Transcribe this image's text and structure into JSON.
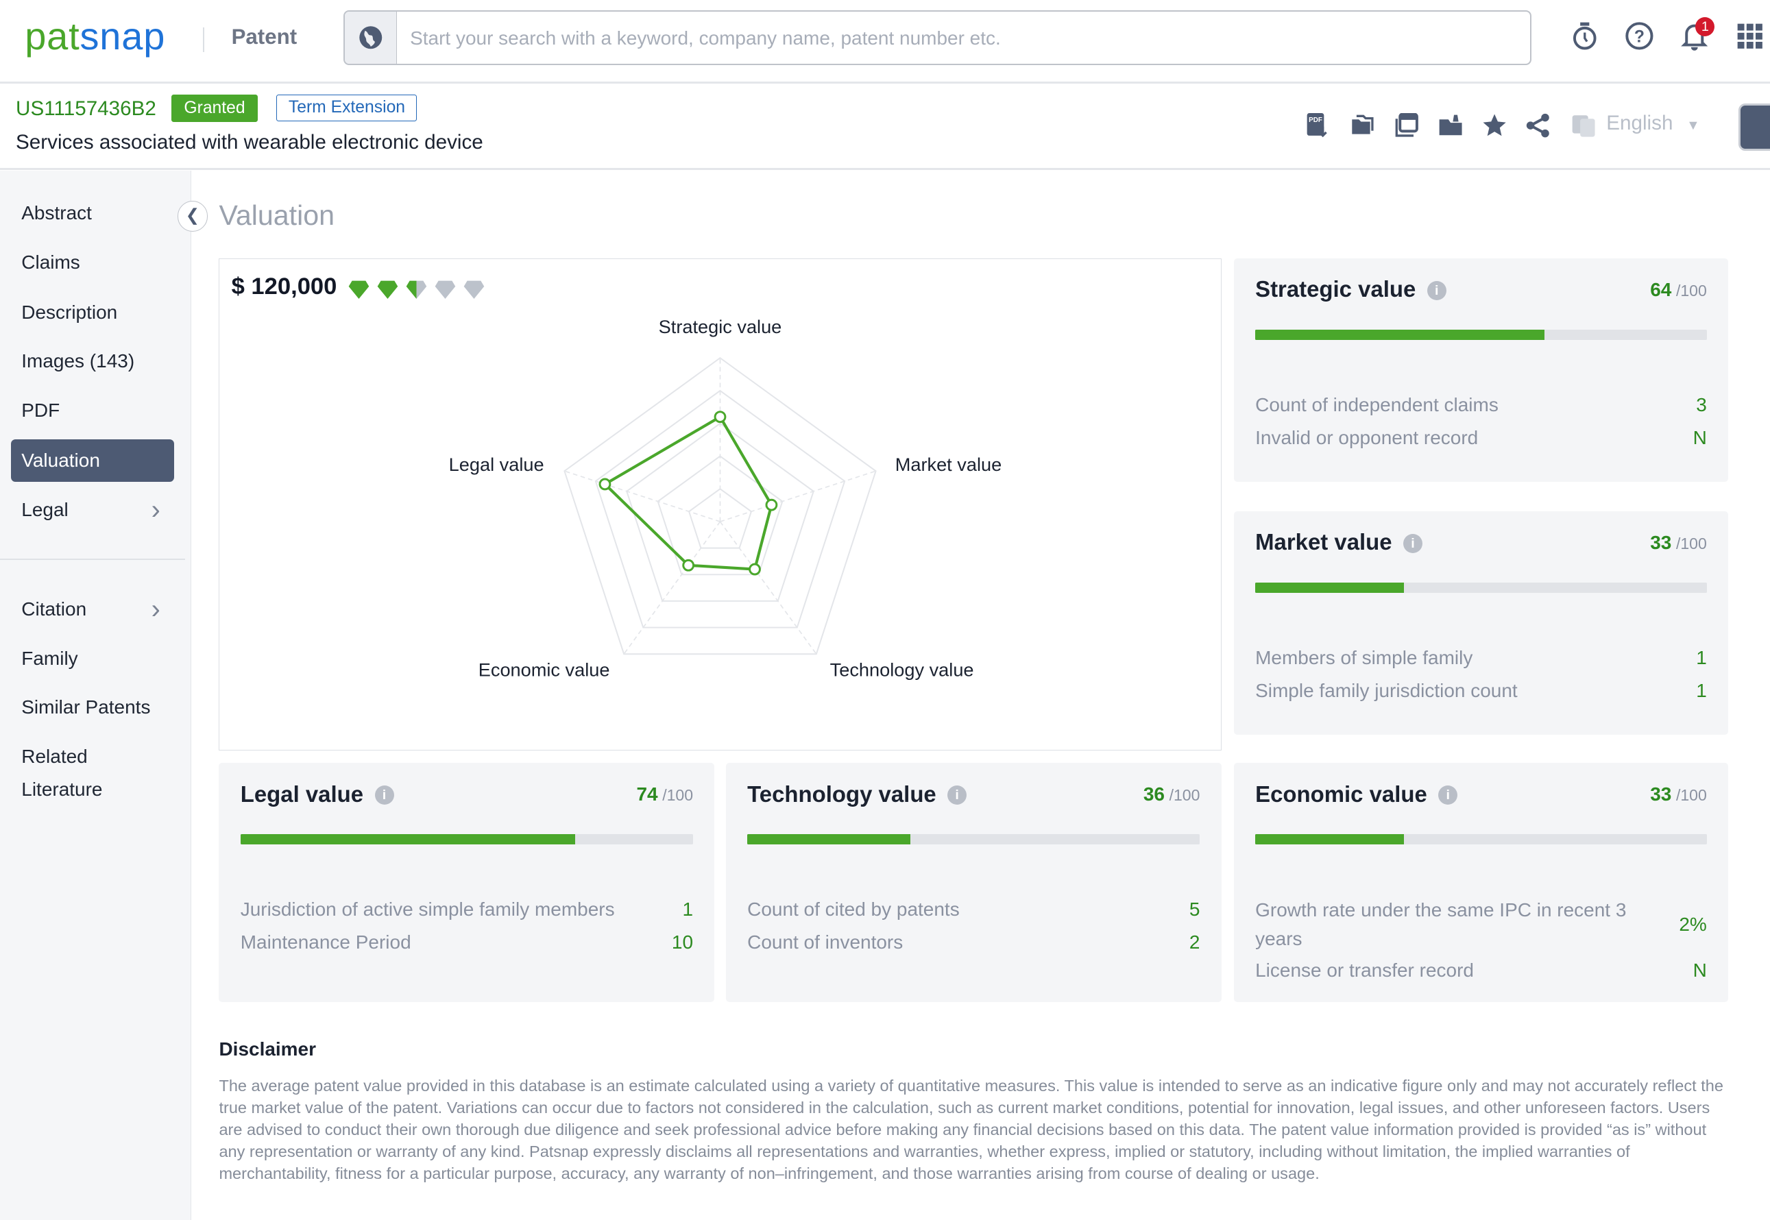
{
  "header": {
    "logo": "patsnap",
    "logo_a": "pat",
    "logo_b": "snap",
    "product": "Patent",
    "search_placeholder": "Start your search with a keyword, company name, patent number etc.",
    "notifications": "1"
  },
  "patent": {
    "number": "US11157436B2",
    "status": "Granted",
    "tag": "Term Extension",
    "title": "Services associated with wearable electronic device",
    "language": "English"
  },
  "sidebar": {
    "items": [
      {
        "label": "Abstract"
      },
      {
        "label": "Claims"
      },
      {
        "label": "Description"
      },
      {
        "label": "Images (143)"
      },
      {
        "label": "PDF"
      },
      {
        "label": "Valuation",
        "active": true
      },
      {
        "label": "Legal",
        "chevron": true
      },
      {
        "label": "Citation",
        "chevron": true
      },
      {
        "label": "Family"
      },
      {
        "label": "Similar Patents"
      },
      {
        "label": "Related Literature"
      }
    ]
  },
  "page_title": "Valuation",
  "valuation": {
    "price": "$ 120,000",
    "rating": 2.5,
    "rating_max": 5,
    "accent": "#4aa72b"
  },
  "chart_data": {
    "type": "radar",
    "axes": [
      "Strategic value",
      "Market value",
      "Technology value",
      "Economic value",
      "Legal value"
    ],
    "values": [
      64,
      33,
      36,
      33,
      74
    ],
    "range": [
      0,
      100
    ],
    "levels": 5
  },
  "cards": {
    "strategic": {
      "title": "Strategic value",
      "score": "64",
      "max": "/100",
      "pct": 64,
      "rows": [
        {
          "label": "Count of independent claims",
          "value": "3"
        },
        {
          "label": "Invalid or opponent record",
          "value": "N"
        }
      ]
    },
    "market": {
      "title": "Market value",
      "score": "33",
      "max": "/100",
      "pct": 33,
      "rows": [
        {
          "label": "Members of simple family",
          "value": "1"
        },
        {
          "label": "Simple family jurisdiction count",
          "value": "1"
        }
      ]
    },
    "legal": {
      "title": "Legal value",
      "score": "74",
      "max": "/100",
      "pct": 74,
      "rows": [
        {
          "label": "Jurisdiction of active simple family members",
          "value": "1"
        },
        {
          "label": "Maintenance Period",
          "value": "10"
        }
      ]
    },
    "technology": {
      "title": "Technology value",
      "score": "36",
      "max": "/100",
      "pct": 36,
      "rows": [
        {
          "label": "Count of cited by patents",
          "value": "5"
        },
        {
          "label": "Count of inventors",
          "value": "2"
        }
      ]
    },
    "economic": {
      "title": "Economic value",
      "score": "33",
      "max": "/100",
      "pct": 33,
      "rows": [
        {
          "label": "Growth rate under the same IPC in recent 3 years",
          "value": "2%"
        },
        {
          "label": "License or transfer record",
          "value": "N"
        }
      ]
    }
  },
  "disclaimer": {
    "title": "Disclaimer",
    "text": "The average patent value provided in this database is an estimate calculated using a variety of quantitative measures. This value is intended to serve as an indicative figure only and may not accurately reflect the true market value of the patent. Variations can occur due to factors not considered in the calculation, such as current market conditions, potential for innovation, legal issues, and other unforeseen factors. Users are advised to conduct their own thorough due diligence and seek professional advice before making any financial decisions based on this data. The patent value information provided is provided “as is” without any representation or warranty of any kind. Patsnap expressly disclaims all representations and warranties, whether express, implied or statutory, including without limitation, the implied warranties of merchantability, fitness for a particular purpose, accuracy, any warranty of non–infringement, and those warranties arising from course of dealing or usage."
  }
}
